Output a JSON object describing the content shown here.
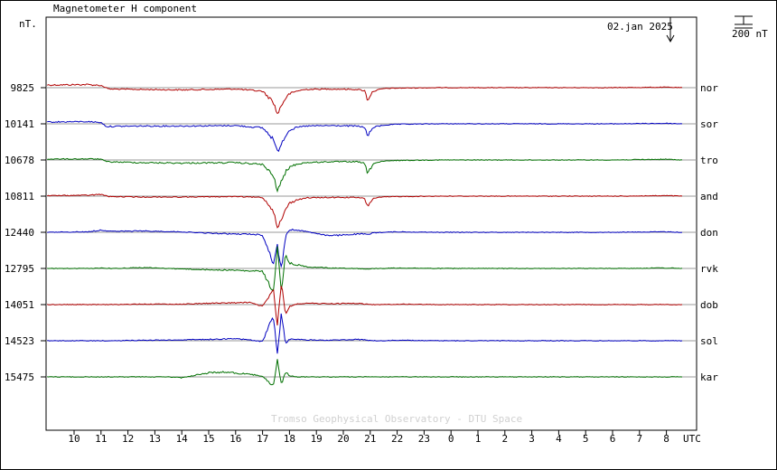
{
  "chart_data": {
    "type": "line",
    "title": "Magnetometer H component",
    "yunit": "nT.",
    "date_label": "02.jan 2025",
    "scale_label": "200 nT",
    "credit": "Tromso Geophysical Observatory - DTU Space",
    "xunit": "UTC",
    "x_ticks": [
      "10",
      "11",
      "12",
      "13",
      "14",
      "15",
      "16",
      "17",
      "18",
      "19",
      "20",
      "21",
      "22",
      "23",
      "0",
      "1",
      "2",
      "3",
      "4",
      "5",
      "6",
      "7",
      "8"
    ],
    "grid": false,
    "legend": "station labels at right end of each trace",
    "series": [
      {
        "name": "nor",
        "baseline": 9825,
        "color": "#b00000",
        "t": [
          9.0,
          10.5,
          11.0,
          11.3,
          12.5,
          14.0,
          16.0,
          17.0,
          17.4,
          17.55,
          17.7,
          17.85,
          18.0,
          18.3,
          18.6,
          19.5,
          20.5,
          20.8,
          20.9,
          21.1,
          21.5,
          22.0,
          23.5,
          1.0,
          4.0,
          6.0,
          8.0,
          8.6
        ],
        "dv": [
          30,
          35,
          25,
          -15,
          -20,
          -25,
          -15,
          -40,
          -160,
          -300,
          -200,
          -120,
          -70,
          -35,
          -20,
          -15,
          -20,
          -35,
          -140,
          -40,
          -10,
          -5,
          0,
          0,
          0,
          0,
          5,
          0
        ]
      },
      {
        "name": "sor",
        "baseline": 10141,
        "color": "#0000c0",
        "t": [
          9.0,
          10.5,
          11.0,
          11.2,
          12.5,
          14.0,
          16.0,
          17.0,
          17.4,
          17.55,
          17.7,
          17.85,
          18.0,
          18.3,
          18.6,
          19.5,
          20.5,
          20.8,
          20.9,
          21.1,
          21.5,
          22.0,
          23.5,
          1.0,
          4.0,
          6.0,
          8.0,
          8.6
        ],
        "dv": [
          20,
          25,
          15,
          -30,
          -25,
          -25,
          -20,
          -45,
          -170,
          -320,
          -220,
          -130,
          -70,
          -40,
          -25,
          -20,
          -25,
          -40,
          -145,
          -40,
          -15,
          -5,
          0,
          0,
          0,
          0,
          5,
          0
        ]
      },
      {
        "name": "tro",
        "baseline": 10678,
        "color": "#007000",
        "t": [
          9.0,
          10.5,
          11.0,
          11.2,
          12.5,
          14.0,
          16.0,
          17.0,
          17.4,
          17.55,
          17.7,
          17.85,
          18.0,
          18.3,
          18.6,
          19.5,
          20.5,
          20.8,
          20.9,
          21.1,
          21.5,
          22.0,
          23.5,
          1.0,
          4.0,
          6.0,
          8.0,
          8.6
        ],
        "dv": [
          10,
          12,
          10,
          -20,
          -30,
          -35,
          -30,
          -50,
          -180,
          -340,
          -250,
          -140,
          -80,
          -45,
          -30,
          -20,
          -20,
          -40,
          -165,
          -40,
          -15,
          -5,
          0,
          0,
          0,
          0,
          8,
          0
        ]
      },
      {
        "name": "and",
        "baseline": 10811,
        "color": "#b00000",
        "t": [
          9.0,
          10.5,
          11.0,
          11.3,
          12.5,
          14.0,
          16.0,
          17.0,
          17.4,
          17.55,
          17.7,
          17.85,
          18.0,
          18.3,
          18.6,
          19.5,
          20.5,
          20.8,
          20.9,
          21.1,
          21.5,
          22.0,
          23.5,
          1.0,
          4.0,
          6.0,
          8.0,
          8.6
        ],
        "dv": [
          5,
          10,
          20,
          -5,
          -10,
          -10,
          -5,
          -15,
          -160,
          -340,
          -280,
          -150,
          -80,
          -40,
          -20,
          -15,
          -15,
          -30,
          -120,
          -25,
          -10,
          -5,
          0,
          0,
          0,
          0,
          5,
          0
        ]
      },
      {
        "name": "don",
        "baseline": 12440,
        "color": "#0000c0",
        "t": [
          9.0,
          10.5,
          11.0,
          11.5,
          12.5,
          14.0,
          15.0,
          16.0,
          16.5,
          17.0,
          17.4,
          17.55,
          17.7,
          17.85,
          18.0,
          18.3,
          18.6,
          19.5,
          20.5,
          20.8,
          20.9,
          21.1,
          21.5,
          22.0,
          23.5,
          1.0,
          4.0,
          6.0,
          8.0,
          8.6
        ],
        "dv": [
          0,
          5,
          25,
          10,
          15,
          5,
          -10,
          -20,
          -20,
          -30,
          -350,
          -150,
          -420,
          -50,
          30,
          25,
          10,
          -40,
          -20,
          -20,
          -30,
          -5,
          0,
          5,
          0,
          0,
          0,
          0,
          5,
          0
        ]
      },
      {
        "name": "rvk",
        "baseline": 12795,
        "color": "#007000",
        "t": [
          9.0,
          10.5,
          11.0,
          11.5,
          12.5,
          14.0,
          15.0,
          16.0,
          16.5,
          17.0,
          17.4,
          17.55,
          17.7,
          17.85,
          18.0,
          18.3,
          18.6,
          19.5,
          20.5,
          20.8,
          20.9,
          21.1,
          21.5,
          22.0,
          23.5,
          1.0,
          4.0,
          6.0,
          8.0,
          8.6
        ],
        "dv": [
          0,
          0,
          5,
          0,
          10,
          -5,
          -15,
          -20,
          -30,
          -30,
          -280,
          240,
          -250,
          150,
          60,
          40,
          20,
          5,
          0,
          -5,
          -10,
          0,
          0,
          5,
          0,
          0,
          0,
          0,
          5,
          0
        ]
      },
      {
        "name": "dob",
        "baseline": 14051,
        "color": "#b00000",
        "t": [
          9.0,
          10.5,
          11.0,
          11.5,
          12.5,
          14.0,
          15.0,
          16.0,
          16.5,
          17.0,
          17.4,
          17.55,
          17.7,
          17.85,
          18.0,
          18.3,
          18.6,
          19.5,
          20.5,
          20.8,
          20.9,
          21.1,
          21.5,
          22.0,
          23.5,
          1.0,
          4.0,
          6.0,
          8.0,
          8.6
        ],
        "dv": [
          0,
          0,
          0,
          0,
          5,
          5,
          15,
          20,
          25,
          -20,
          170,
          -240,
          260,
          -120,
          -20,
          10,
          15,
          10,
          15,
          5,
          5,
          0,
          0,
          5,
          0,
          0,
          0,
          0,
          0,
          0
        ]
      },
      {
        "name": "sol",
        "baseline": 14523,
        "color": "#0000c0",
        "t": [
          9.0,
          10.5,
          11.0,
          11.5,
          12.5,
          14.0,
          15.0,
          16.0,
          16.5,
          17.0,
          17.4,
          17.55,
          17.7,
          17.85,
          18.0,
          18.3,
          18.6,
          19.5,
          20.5,
          20.8,
          20.9,
          21.1,
          21.5,
          22.0,
          23.5,
          1.0,
          4.0,
          6.0,
          8.0,
          8.6
        ],
        "dv": [
          0,
          0,
          0,
          0,
          5,
          10,
          15,
          25,
          10,
          -10,
          280,
          -160,
          330,
          -40,
          20,
          15,
          10,
          5,
          15,
          10,
          5,
          0,
          0,
          5,
          0,
          0,
          0,
          0,
          0,
          0
        ]
      },
      {
        "name": "kar",
        "baseline": 15475,
        "color": "#007000",
        "t": [
          9.0,
          10.5,
          11.0,
          11.5,
          12.5,
          13.5,
          14.0,
          14.5,
          15.0,
          15.5,
          16.0,
          16.5,
          17.0,
          17.4,
          17.55,
          17.7,
          17.85,
          18.0,
          18.3,
          18.6,
          19.5,
          20.5,
          21.0,
          22.0,
          23.5,
          1.0,
          4.0,
          6.0,
          8.0,
          8.6
        ],
        "dv": [
          0,
          0,
          0,
          0,
          0,
          0,
          -10,
          20,
          45,
          55,
          45,
          30,
          10,
          -110,
          190,
          -90,
          60,
          10,
          0,
          0,
          0,
          0,
          0,
          0,
          0,
          0,
          0,
          0,
          0,
          0
        ]
      }
    ]
  }
}
